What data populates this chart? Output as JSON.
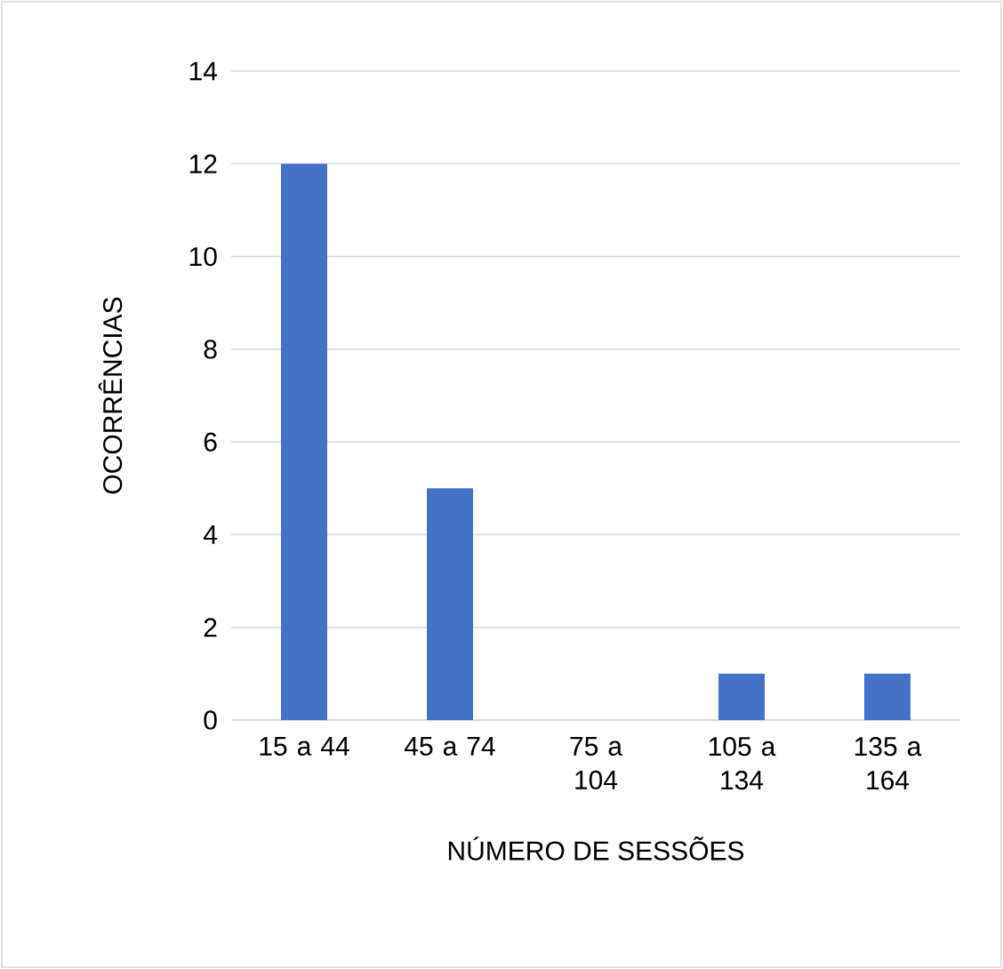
{
  "chart_data": {
    "type": "bar",
    "xlabel": "NÚMERO DE SESSÕES",
    "ylabel": "OCORRÊNCIAS",
    "categories": [
      "15 a 44",
      "45 a 74",
      "75 a 104",
      "105 a 134",
      "135 a 164"
    ],
    "values": [
      12,
      5,
      0,
      1,
      1
    ],
    "color": "#4472c4",
    "ylim": [
      0,
      14
    ],
    "yticks": [
      0,
      2,
      4,
      6,
      8,
      10,
      12,
      14
    ],
    "grid": "y"
  }
}
